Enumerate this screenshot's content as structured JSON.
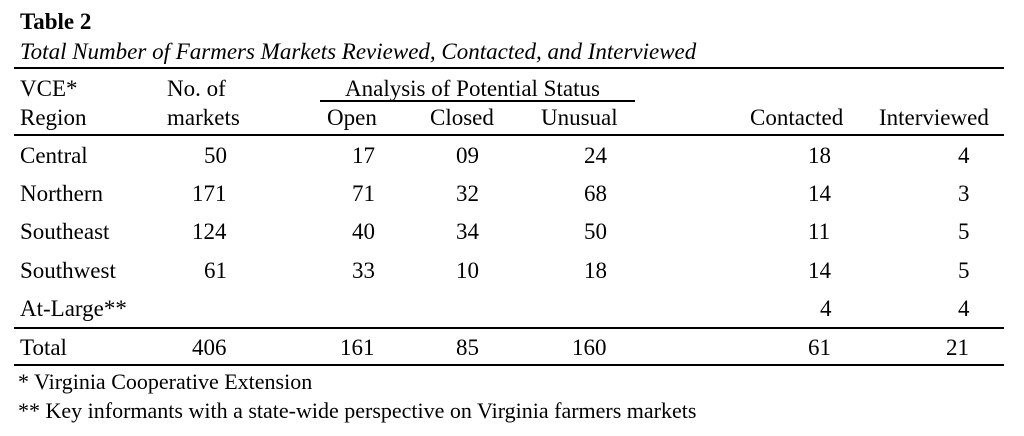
{
  "table": {
    "title": "Table 2",
    "caption": "Total Number of Farmers Markets Reviewed, Contacted, and Interviewed",
    "headers": {
      "region_line1": "VCE*",
      "region_line2": "Region",
      "markets_line1": "No. of",
      "markets_line2": "markets",
      "group_label": "Analysis of Potential Status",
      "open": "Open",
      "closed": "Closed",
      "unusual": "Unusual",
      "contacted": "Contacted",
      "interviewed": "Interviewed"
    },
    "rows": [
      {
        "region": "Central",
        "markets": "50",
        "open": "17",
        "closed": "09",
        "unusual": "24",
        "contacted": "18",
        "interviewed": "4"
      },
      {
        "region": "Northern",
        "markets": "171",
        "open": "71",
        "closed": "32",
        "unusual": "68",
        "contacted": "14",
        "interviewed": "3"
      },
      {
        "region": "Southeast",
        "markets": "124",
        "open": "40",
        "closed": "34",
        "unusual": "50",
        "contacted": "11",
        "interviewed": "5"
      },
      {
        "region": "Southwest",
        "markets": "61",
        "open": "33",
        "closed": "10",
        "unusual": "18",
        "contacted": "14",
        "interviewed": "5"
      },
      {
        "region": "At-Large**",
        "markets": "",
        "open": "",
        "closed": "",
        "unusual": "",
        "contacted": "4",
        "interviewed": "4"
      }
    ],
    "total": {
      "region": "Total",
      "markets": "406",
      "open": "161",
      "closed": "85",
      "unusual": "160",
      "contacted": "61",
      "interviewed": "21"
    },
    "footnotes": [
      "* Virginia Cooperative Extension",
      "** Key informants with a state-wide perspective on Virginia farmers markets"
    ]
  }
}
